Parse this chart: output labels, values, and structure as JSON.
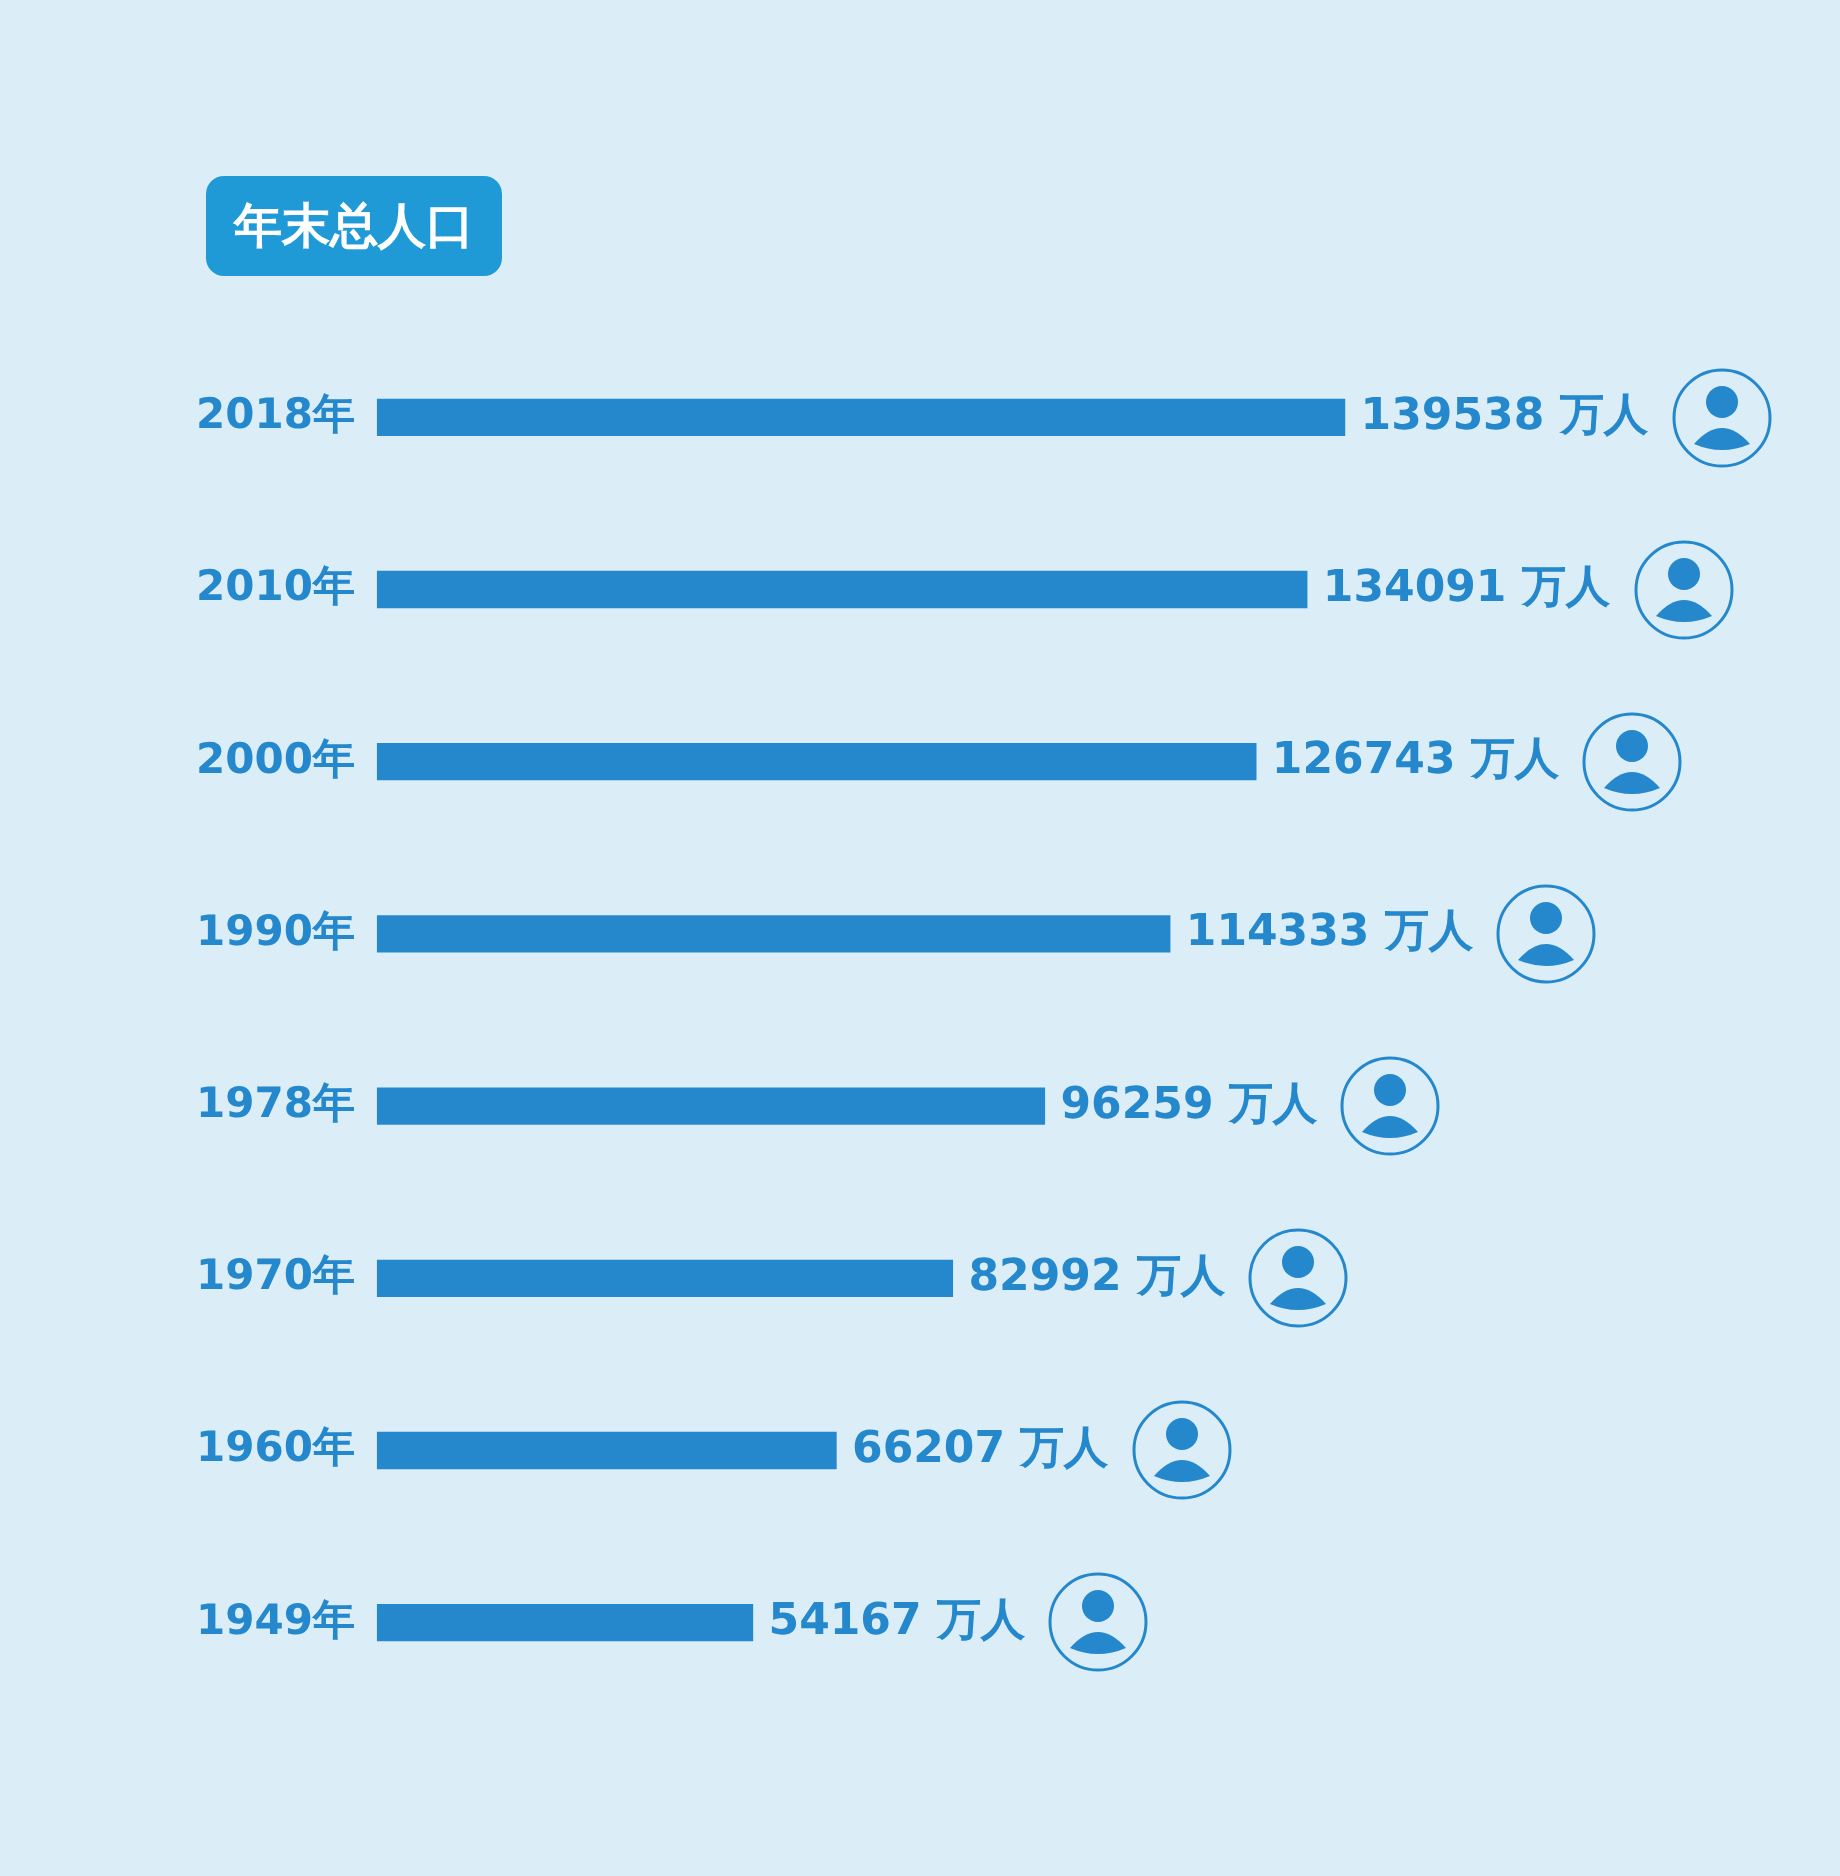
{
  "chart_data": {
    "type": "bar",
    "orientation": "horizontal",
    "title": "年末总人口",
    "categories": [
      "2018年",
      "2010年",
      "2000年",
      "1990年",
      "1978年",
      "1970年",
      "1960年",
      "1949年"
    ],
    "values": [
      139538,
      134091,
      126743,
      114333,
      96259,
      82992,
      66207,
      54167
    ],
    "value_labels": [
      "139538 万人",
      "134091 万人",
      "126743 万人",
      "114333 万人",
      "96259 万人",
      "82992 万人",
      "66207 万人",
      "54167 万人"
    ],
    "color": "#2588cc",
    "legend": false,
    "tick_labels": "y"
  }
}
